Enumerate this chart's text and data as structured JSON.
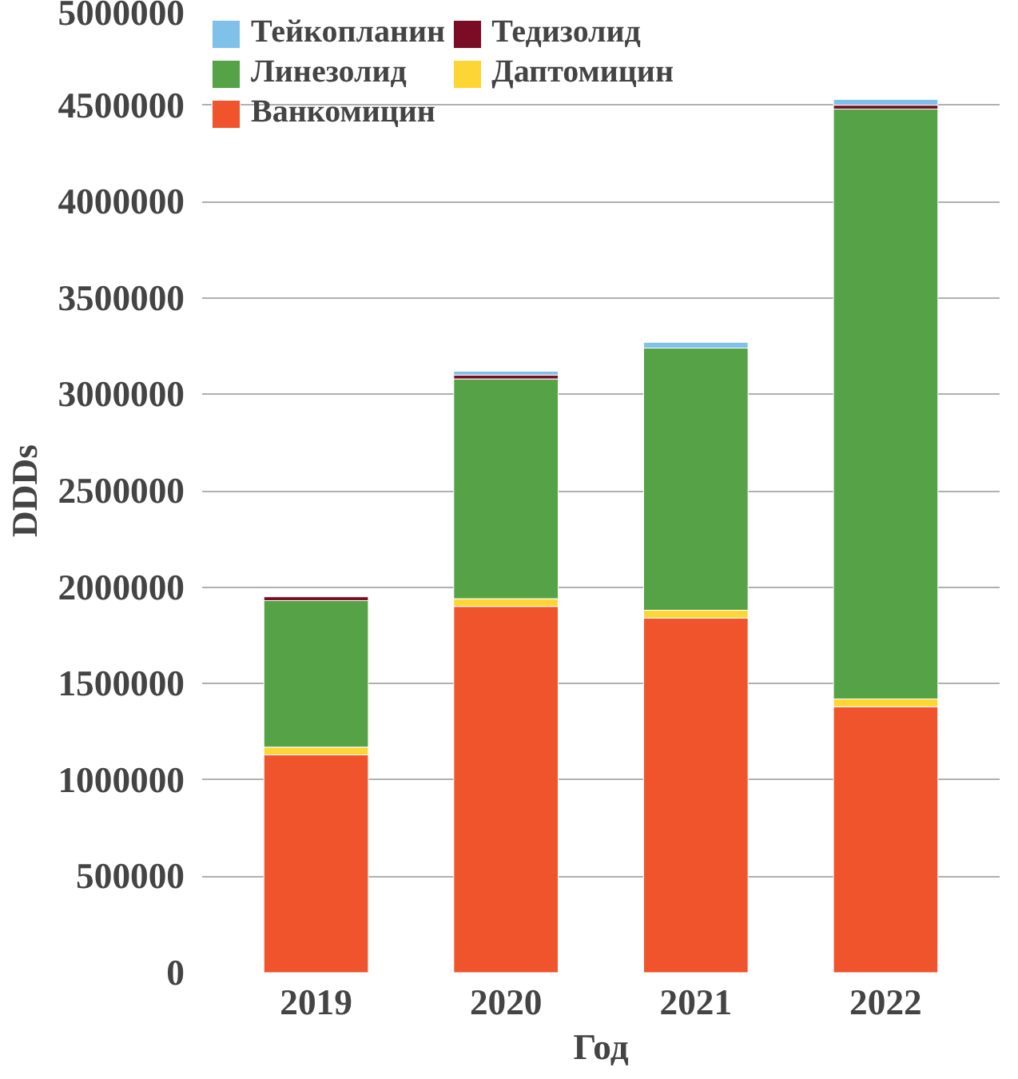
{
  "chart_data": {
    "type": "bar",
    "stacked": true,
    "xlabel": "Год",
    "ylabel": "DDDs",
    "categories": [
      "2019",
      "2020",
      "2021",
      "2022"
    ],
    "ylim": [
      0,
      5000000
    ],
    "yticks": [
      0,
      500000,
      1000000,
      1500000,
      2000000,
      2500000,
      3000000,
      3500000,
      4000000,
      4500000,
      5000000
    ],
    "grid": "y",
    "legend": "top left",
    "series": [
      {
        "name": "Ванкомицин",
        "color": "#ef542d",
        "values": [
          1130000,
          1900000,
          1840000,
          1380000
        ]
      },
      {
        "name": "Даптомицин",
        "color": "#fdd535",
        "values": [
          40000,
          40000,
          40000,
          40000
        ]
      },
      {
        "name": "Линезолид",
        "color": "#55a346",
        "values": [
          760000,
          1140000,
          1360000,
          3060000
        ]
      },
      {
        "name": "Тедизолид",
        "color": "#7b0c26",
        "values": [
          20000,
          20000,
          null,
          20000
        ]
      },
      {
        "name": "Тейкопланин",
        "color": "#7fc1e8",
        "values": [
          null,
          20000,
          30000,
          30000
        ]
      }
    ]
  }
}
